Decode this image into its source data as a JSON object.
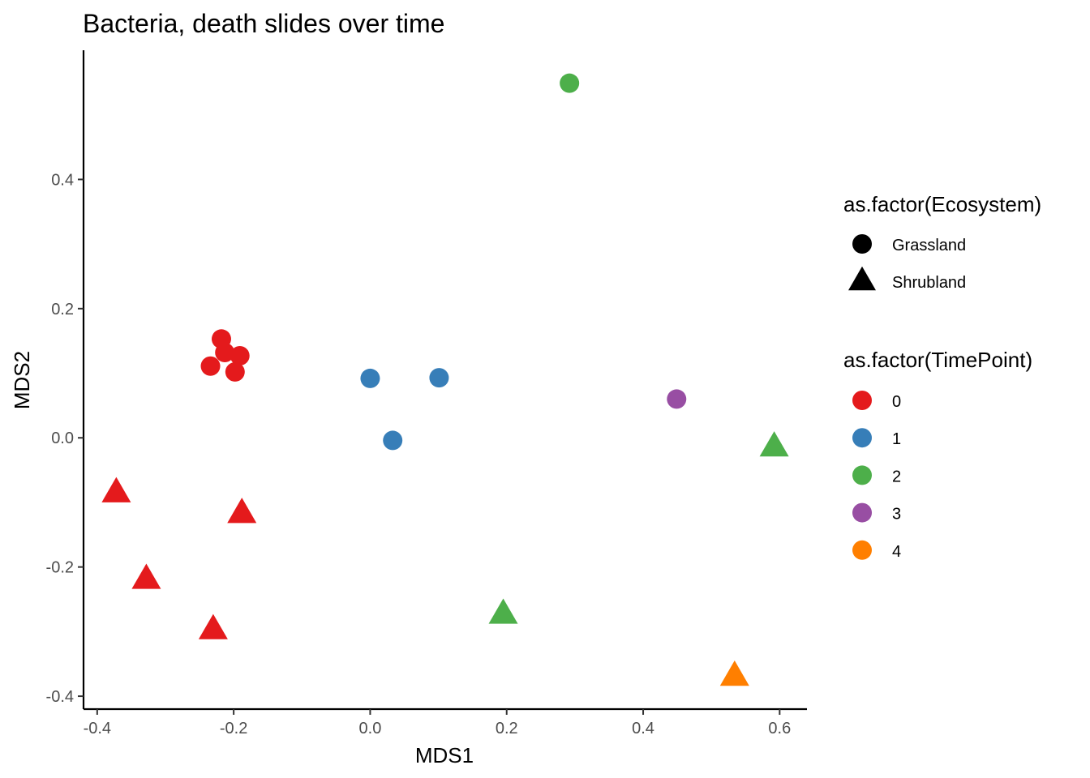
{
  "chart_data": {
    "type": "scatter",
    "title": "Bacteria, death slides over time",
    "xlabel": "MDS1",
    "ylabel": "MDS2",
    "xlim": [
      -0.42,
      0.64
    ],
    "ylim": [
      -0.42,
      0.6
    ],
    "xticks": [
      -0.4,
      -0.2,
      0.0,
      0.2,
      0.4,
      0.6
    ],
    "xtick_labels": [
      "-0.4",
      "-0.2",
      "0.0",
      "0.2",
      "0.4",
      "0.6"
    ],
    "yticks": [
      -0.4,
      -0.2,
      0.0,
      0.2,
      0.4
    ],
    "ytick_labels": [
      "-0.4",
      "-0.2",
      "0.0",
      "0.2",
      "0.4"
    ],
    "grid": false,
    "legend_position": "right",
    "shape_legend": {
      "title": "as.factor(Ecosystem)",
      "items": [
        {
          "label": "Grassland",
          "shape": "circle"
        },
        {
          "label": "Shrubland",
          "shape": "triangle"
        }
      ]
    },
    "color_legend": {
      "title": "as.factor(TimePoint)",
      "items": [
        {
          "label": "0",
          "color": "#e41a1c"
        },
        {
          "label": "1",
          "color": "#377eb8"
        },
        {
          "label": "2",
          "color": "#4daf4a"
        },
        {
          "label": "3",
          "color": "#984ea3"
        },
        {
          "label": "4",
          "color": "#ff7f00"
        }
      ]
    },
    "points": [
      {
        "x": -0.218,
        "y": 0.153,
        "ecosystem": "Grassland",
        "timepoint": "0"
      },
      {
        "x": -0.213,
        "y": 0.132,
        "ecosystem": "Grassland",
        "timepoint": "0"
      },
      {
        "x": -0.191,
        "y": 0.127,
        "ecosystem": "Grassland",
        "timepoint": "0"
      },
      {
        "x": -0.234,
        "y": 0.111,
        "ecosystem": "Grassland",
        "timepoint": "0"
      },
      {
        "x": -0.198,
        "y": 0.102,
        "ecosystem": "Grassland",
        "timepoint": "0"
      },
      {
        "x": 0.0,
        "y": 0.092,
        "ecosystem": "Grassland",
        "timepoint": "1"
      },
      {
        "x": 0.101,
        "y": 0.093,
        "ecosystem": "Grassland",
        "timepoint": "1"
      },
      {
        "x": 0.033,
        "y": -0.004,
        "ecosystem": "Grassland",
        "timepoint": "1"
      },
      {
        "x": 0.292,
        "y": 0.549,
        "ecosystem": "Grassland",
        "timepoint": "2"
      },
      {
        "x": 0.449,
        "y": 0.06,
        "ecosystem": "Grassland",
        "timepoint": "3"
      },
      {
        "x": -0.372,
        "y": -0.085,
        "ecosystem": "Shrubland",
        "timepoint": "0"
      },
      {
        "x": -0.188,
        "y": -0.117,
        "ecosystem": "Shrubland",
        "timepoint": "0"
      },
      {
        "x": -0.328,
        "y": -0.219,
        "ecosystem": "Shrubland",
        "timepoint": "0"
      },
      {
        "x": -0.23,
        "y": -0.297,
        "ecosystem": "Shrubland",
        "timepoint": "0"
      },
      {
        "x": 0.592,
        "y": -0.014,
        "ecosystem": "Shrubland",
        "timepoint": "2"
      },
      {
        "x": 0.195,
        "y": -0.273,
        "ecosystem": "Shrubland",
        "timepoint": "2"
      },
      {
        "x": 0.534,
        "y": -0.369,
        "ecosystem": "Shrubland",
        "timepoint": "4"
      }
    ]
  }
}
